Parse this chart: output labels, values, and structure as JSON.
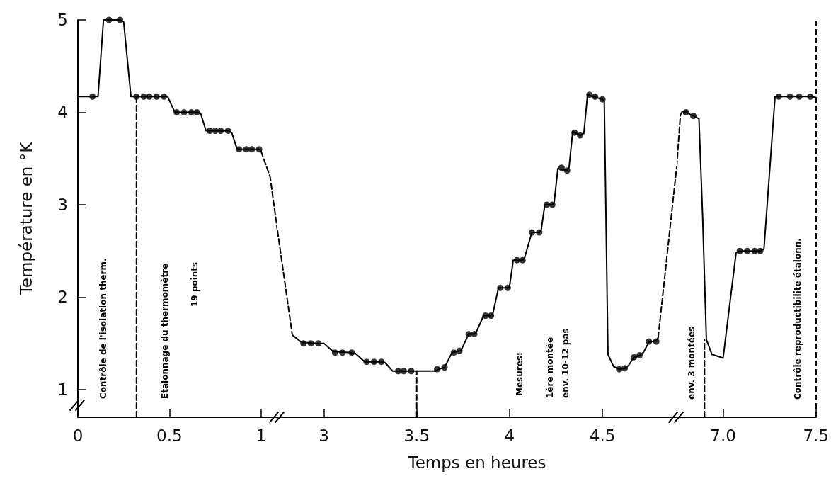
{
  "chart_data": [
    {
      "type": "line",
      "ylabel": "Température en °K",
      "xlim": [
        0,
        1.09
      ],
      "ylim": [
        0.7,
        5
      ],
      "xticks": [
        0,
        0.5,
        1
      ],
      "yticks": [
        1,
        2,
        3,
        4,
        5
      ],
      "series": [
        {
          "color": "#000000",
          "line_style": "solid",
          "marker": "none",
          "x": [
            0,
            0.08,
            0.11,
            0.14,
            0.17,
            0.23,
            0.25,
            0.29,
            0.32,
            0.47,
            0.49,
            0.53,
            0.65,
            0.67,
            0.7,
            0.82,
            0.84,
            0.87,
            0.99,
            1.0
          ],
          "values": [
            4.17,
            4.17,
            4.17,
            5.0,
            5.0,
            5.0,
            4.98,
            4.17,
            4.17,
            4.17,
            4.17,
            4.0,
            4.0,
            3.99,
            3.8,
            3.8,
            3.78,
            3.6,
            3.6,
            3.58
          ]
        },
        {
          "color": "#000000",
          "line_style": "dashed",
          "marker": "none",
          "x": [
            1.0,
            1.05,
            1.09
          ],
          "values": [
            3.58,
            3.3,
            2.72
          ]
        },
        {
          "color": "#000000",
          "line_style": "dashed",
          "marker": "none",
          "x": [
            0.32,
            0.32
          ],
          "values": [
            0.7,
            4.17
          ]
        },
        {
          "type": "scatter",
          "color": "#000000",
          "marker": "circle",
          "x": [
            0.08,
            0.17,
            0.23,
            0.32,
            0.36,
            0.39,
            0.43,
            0.47,
            0.54,
            0.58,
            0.62,
            0.65,
            0.72,
            0.75,
            0.78,
            0.82,
            0.88,
            0.92,
            0.95,
            0.99
          ],
          "values": [
            4.17,
            5.0,
            5.0,
            4.17,
            4.17,
            4.17,
            4.17,
            4.17,
            4.0,
            4.0,
            4.0,
            4.0,
            3.8,
            3.8,
            3.8,
            3.8,
            3.6,
            3.6,
            3.6,
            3.6
          ]
        }
      ],
      "annotations": [
        "Contrôle de l'isolation therm.",
        "Etalonnage du thermomètre",
        "19 points"
      ]
    },
    {
      "type": "line",
      "xlabel": "Temps en heures",
      "xlim": [
        2.75,
        4.9
      ],
      "ylim": [
        0.7,
        5
      ],
      "xticks": [
        3,
        3.5,
        4,
        4.5
      ],
      "tick_labels": "x",
      "series": [
        {
          "color": "#000000",
          "line_style": "solid",
          "marker": "none",
          "x": [
            2.83,
            2.88,
            2.97,
            3.0,
            3.05,
            3.15,
            3.17,
            3.22,
            3.31,
            3.33,
            3.37,
            3.6,
            3.62,
            3.65,
            3.69,
            3.73,
            3.74,
            3.78,
            3.81,
            3.82,
            3.86,
            3.9,
            3.91,
            3.94,
            3.99,
            4.0,
            4.02,
            4.07,
            4.08,
            4.12,
            4.16,
            4.17,
            4.19,
            4.23,
            4.24,
            4.26,
            4.31,
            4.32,
            4.34,
            4.38,
            4.4,
            4.42,
            4.5,
            4.51,
            4.53,
            4.56,
            4.59,
            4.62,
            4.64,
            4.67,
            4.7,
            4.72,
            4.75,
            4.79,
            4.8
          ],
          "values": [
            1.59,
            1.51,
            1.5,
            1.5,
            1.41,
            1.4,
            1.39,
            1.3,
            1.3,
            1.29,
            1.2,
            1.2,
            1.22,
            1.24,
            1.4,
            1.42,
            1.43,
            1.6,
            1.6,
            1.62,
            1.8,
            1.8,
            1.82,
            2.1,
            2.1,
            2.12,
            2.4,
            2.4,
            2.42,
            2.7,
            2.7,
            2.72,
            3.0,
            3.0,
            3.02,
            3.39,
            3.37,
            3.4,
            3.79,
            3.75,
            3.77,
            4.19,
            4.14,
            4.12,
            1.38,
            1.25,
            1.22,
            1.23,
            1.26,
            1.35,
            1.37,
            1.4,
            1.51,
            1.53,
            1.56
          ]
        },
        {
          "color": "#000000",
          "line_style": "dashed",
          "marker": "none",
          "x": [
            2.75,
            2.83
          ],
          "values": [
            2.72,
            1.59
          ]
        },
        {
          "color": "#000000",
          "line_style": "dashed",
          "marker": "none",
          "x": [
            4.8,
            4.9
          ],
          "values": [
            1.56,
            3.41
          ]
        },
        {
          "color": "#000000",
          "line_style": "dashed",
          "marker": "none",
          "x": [
            3.5,
            3.5
          ],
          "values": [
            0.7,
            1.2
          ]
        },
        {
          "type": "scatter",
          "color": "#000000",
          "marker": "circle",
          "x": [
            2.89,
            2.93,
            2.97,
            3.06,
            3.1,
            3.15,
            3.23,
            3.27,
            3.31,
            3.4,
            3.43,
            3.47,
            3.61,
            3.65,
            3.7,
            3.73,
            3.78,
            3.81,
            3.87,
            3.9,
            3.95,
            3.99,
            4.04,
            4.07,
            4.12,
            4.16,
            4.2,
            4.23,
            4.28,
            4.31,
            4.35,
            4.38,
            4.43,
            4.46,
            4.5,
            4.59,
            4.62,
            4.67,
            4.7,
            4.75,
            4.79
          ],
          "values": [
            1.5,
            1.5,
            1.5,
            1.4,
            1.4,
            1.4,
            1.3,
            1.3,
            1.3,
            1.2,
            1.2,
            1.2,
            1.22,
            1.24,
            1.4,
            1.42,
            1.6,
            1.6,
            1.8,
            1.8,
            2.1,
            2.1,
            2.4,
            2.4,
            2.7,
            2.7,
            3.0,
            3.0,
            3.4,
            3.37,
            3.78,
            3.75,
            4.19,
            4.17,
            4.14,
            1.22,
            1.23,
            1.35,
            1.37,
            1.52,
            1.52
          ]
        }
      ],
      "annotations": [
        "Mesures:",
        "1ère montée",
        "env. 10-12 pas"
      ]
    },
    {
      "type": "line",
      "ref_lines": [
        {
          "axis": "x",
          "value": 7.5,
          "color": "#000000",
          "line_style": "dashed"
        }
      ],
      "xlim": [
        6.75,
        7.5
      ],
      "ylim": [
        0.7,
        5
      ],
      "xticks": [
        {
          "value": 7,
          "label": "7.0"
        },
        7.5
      ],
      "tick_labels": "x",
      "series": [
        {
          "color": "#000000",
          "line_style": "solid",
          "marker": "none",
          "x": [
            6.77,
            6.78,
            6.8,
            6.84,
            6.87,
            6.89,
            6.91,
            6.94,
            7.0,
            7.07,
            7.09,
            7.2,
            7.22,
            7.28,
            7.47,
            7.5
          ],
          "values": [
            3.97,
            4.01,
            4.0,
            3.96,
            3.93,
            2.86,
            1.54,
            1.38,
            1.34,
            2.48,
            2.5,
            2.5,
            2.52,
            4.17,
            4.17,
            4.16
          ]
        },
        {
          "color": "#000000",
          "line_style": "dashed",
          "marker": "none",
          "x": [
            6.75,
            6.77
          ],
          "values": [
            3.41,
            3.97
          ]
        },
        {
          "color": "#000000",
          "line_style": "dashed",
          "marker": "none",
          "x": [
            6.9,
            6.9
          ],
          "values": [
            0.7,
            1.54
          ]
        },
        {
          "type": "scatter",
          "color": "#000000",
          "marker": "circle",
          "x": [
            6.8,
            6.84,
            7.09,
            7.13,
            7.17,
            7.2,
            7.3,
            7.36,
            7.41,
            7.47
          ],
          "values": [
            4.0,
            3.96,
            2.5,
            2.5,
            2.5,
            2.5,
            4.17,
            4.17,
            4.17,
            4.17
          ]
        }
      ],
      "annotations": [
        "env. 3 montées",
        "Contrôle reproductibilite étalonn."
      ]
    }
  ]
}
